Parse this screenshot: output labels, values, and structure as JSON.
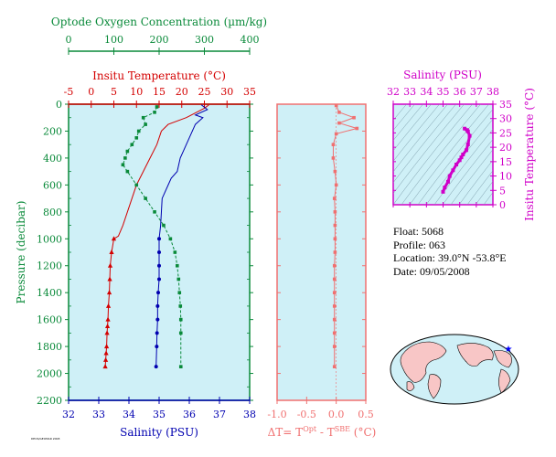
{
  "colors": {
    "oxygen": "#0a8a3a",
    "temperature": "#d40000",
    "salinity": "#0000b0",
    "difference": "#f07070",
    "ts_diagram": "#d000c8",
    "panel_bg": "#cff0f7"
  },
  "info": {
    "float": "Float:  5068",
    "profile": "Profile:  063",
    "location": "Location:  39.0°N  -53.8°E",
    "date": "Date:  09/05/2008"
  },
  "credit": "DEOS/GEOMAR 2008",
  "chart_data": [
    {
      "type": "line",
      "title": "",
      "ylabel": "Pressure (decibar)",
      "ylim": [
        2200,
        0
      ],
      "yticks": [
        "0",
        "200",
        "400",
        "600",
        "800",
        "1000",
        "1200",
        "1400",
        "1600",
        "1800",
        "2000",
        "2200"
      ],
      "axes": {
        "oxygen": {
          "label": "Optode Oxygen Concentration (µm/kg)",
          "range": [
            0,
            400
          ],
          "ticks": [
            "0",
            "100",
            "200",
            "300",
            "400"
          ]
        },
        "temperature": {
          "label": "Insitu Temperature (°C)",
          "range": [
            -5,
            35
          ],
          "ticks": [
            "-5",
            "0",
            "5",
            "10",
            "15",
            "20",
            "25",
            "30",
            "35"
          ]
        },
        "salinity": {
          "label": "Salinity (PSU)",
          "range": [
            32,
            38
          ],
          "ticks": [
            "32",
            "33",
            "34",
            "35",
            "36",
            "37",
            "38"
          ]
        }
      },
      "series": [
        {
          "name": "Insitu Temperature",
          "axis": "temperature",
          "x": [
            26,
            25,
            21,
            17,
            15.5,
            14.5,
            13,
            11.5,
            10,
            9,
            8,
            7,
            6,
            5,
            4.5,
            4.2,
            4.1,
            4.0,
            3.8,
            3.7,
            3.6,
            3.5,
            3.4,
            3.3,
            3.2,
            3.1
          ],
          "y": [
            5,
            30,
            100,
            150,
            200,
            300,
            400,
            500,
            600,
            700,
            800,
            900,
            980,
            1000,
            1100,
            1200,
            1300,
            1400,
            1500,
            1600,
            1650,
            1700,
            1800,
            1850,
            1900,
            1950
          ]
        },
        {
          "name": "Salinity",
          "axis": "salinity",
          "x": [
            36.4,
            36.6,
            36.2,
            36.45,
            36.2,
            36.1,
            36.0,
            35.9,
            35.8,
            35.7,
            35.65,
            35.6,
            35.4,
            35.3,
            35.1,
            35.05,
            35.0,
            35.0,
            35.0,
            35.0,
            34.97,
            34.95,
            34.95,
            34.93,
            34.92,
            34.9
          ],
          "y": [
            5,
            40,
            80,
            100,
            150,
            200,
            250,
            300,
            350,
            400,
            450,
            500,
            550,
            600,
            700,
            900,
            1000,
            1100,
            1200,
            1300,
            1400,
            1500,
            1600,
            1700,
            1800,
            1950
          ]
        },
        {
          "name": "Optode Oxygen Concentration",
          "axis": "oxygen",
          "x": [
            195,
            190,
            165,
            170,
            155,
            150,
            140,
            130,
            125,
            120,
            130,
            150,
            170,
            190,
            210,
            225,
            235,
            240,
            243,
            245,
            247,
            248,
            248,
            248
          ],
          "y": [
            20,
            60,
            100,
            150,
            200,
            250,
            300,
            350,
            400,
            450,
            500,
            600,
            700,
            800,
            900,
            1000,
            1100,
            1200,
            1300,
            1400,
            1500,
            1600,
            1700,
            1950
          ]
        }
      ]
    },
    {
      "type": "line",
      "title": "",
      "xlabel_main": "ΔT= T",
      "xlabel_sup1": "Opt",
      "xlabel_mid": " - T",
      "xlabel_sup2": "SBE",
      "xlabel_end": " (°C)",
      "xlim": [
        -1.0,
        0.5
      ],
      "xticks": [
        "-1.0",
        "-0.5",
        "0.0",
        "0.5"
      ],
      "ylim": [
        2200,
        0
      ],
      "series": [
        {
          "name": "ΔT",
          "x": [
            0.0,
            0.05,
            0.3,
            0.05,
            0.35,
            0.0,
            -0.05,
            -0.05,
            -0.02,
            0.0,
            -0.03,
            -0.02,
            -0.02,
            -0.02,
            -0.02,
            -0.03,
            -0.03,
            -0.03,
            -0.03,
            -0.03,
            -0.03,
            -0.03,
            -0.03
          ],
          "y": [
            10,
            60,
            100,
            140,
            180,
            220,
            300,
            400,
            500,
            600,
            700,
            800,
            900,
            1000,
            1100,
            1200,
            1300,
            1400,
            1500,
            1600,
            1700,
            1800,
            1950
          ]
        }
      ]
    },
    {
      "type": "scatter",
      "title": "",
      "xlabel": "Salinity (PSU)",
      "ylabel": "Insitu Temperature (°C)",
      "xlim": [
        32,
        38
      ],
      "ylim": [
        0,
        35
      ],
      "xticks": [
        "32",
        "33",
        "34",
        "35",
        "36",
        "37",
        "38"
      ],
      "yticks": [
        "0",
        "5",
        "10",
        "15",
        "20",
        "25",
        "30",
        "35"
      ],
      "series": [
        {
          "name": "T-S",
          "x": [
            35.0,
            35.1,
            35.3,
            35.4,
            35.6,
            35.8,
            36.0,
            36.1,
            36.2,
            36.4,
            36.5,
            36.6,
            36.5,
            36.3,
            36.45
          ],
          "y": [
            4.5,
            6,
            8,
            10,
            12,
            14,
            15.5,
            16.5,
            17.5,
            19,
            21,
            24,
            25.5,
            26.5,
            26
          ]
        }
      ]
    }
  ]
}
